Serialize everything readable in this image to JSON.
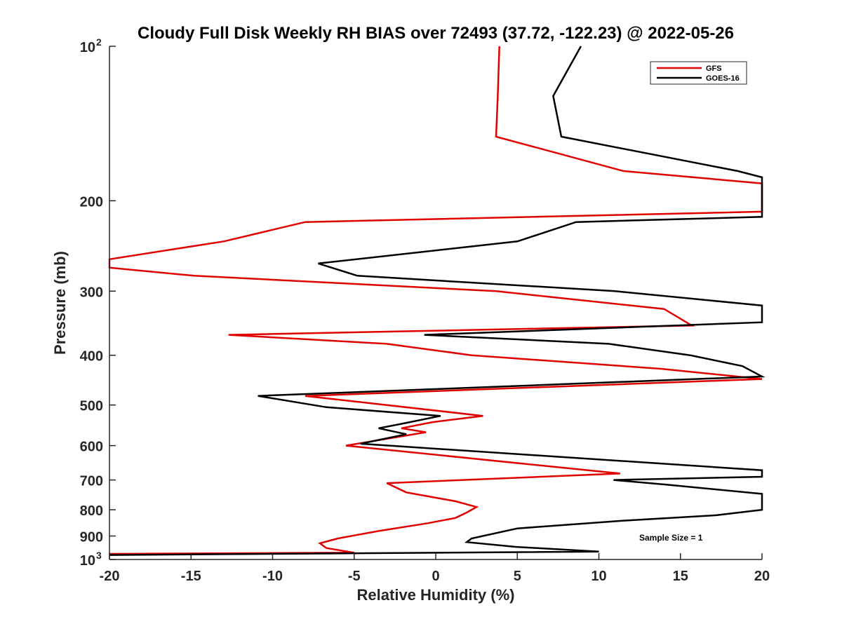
{
  "chart_data": {
    "type": "line",
    "title": "Cloudy Full Disk Weekly RH BIAS over 72493 (37.72, -122.23) @ 2022-05-26",
    "xlabel": "Relative Humidity (%)",
    "ylabel": "Pressure (mb)",
    "xlim": [
      -20,
      20
    ],
    "ylim": [
      100,
      1000
    ],
    "yscale": "log",
    "y_reversed": true,
    "grid": false,
    "legend_position": "top-right",
    "x_ticks": [
      "-20",
      "-15",
      "-10",
      "-5",
      "0",
      "5",
      "10",
      "15",
      "20"
    ],
    "x_tick_values": [
      -20,
      -15,
      -10,
      -5,
      0,
      5,
      10,
      15,
      20
    ],
    "y_ticks": [
      {
        "value": 100,
        "label": "10",
        "sup": "2"
      },
      {
        "value": 200,
        "label": "200"
      },
      {
        "value": 300,
        "label": "300"
      },
      {
        "value": 400,
        "label": "400"
      },
      {
        "value": 500,
        "label": "500"
      },
      {
        "value": 600,
        "label": "600"
      },
      {
        "value": 700,
        "label": "700"
      },
      {
        "value": 800,
        "label": "800"
      },
      {
        "value": 900,
        "label": "900"
      },
      {
        "value": 1000,
        "label": "10",
        "sup": "3"
      }
    ],
    "annotation": "Sample Size = 1",
    "series": [
      {
        "name": "GFS",
        "color": "#e00000",
        "points": [
          [
            3.9,
            100
          ],
          [
            3.8,
            125
          ],
          [
            3.7,
            150
          ],
          [
            11.5,
            175
          ],
          [
            20,
            185
          ],
          [
            20,
            210
          ],
          [
            -8,
            220
          ],
          [
            -13,
            240
          ],
          [
            -20,
            260
          ],
          [
            -20,
            270
          ],
          [
            -14.8,
            280
          ],
          [
            3.7,
            300
          ],
          [
            14,
            325
          ],
          [
            15.7,
            350
          ],
          [
            -12.7,
            365
          ],
          [
            -3,
            380
          ],
          [
            2.2,
            400
          ],
          [
            13.8,
            425
          ],
          [
            20,
            445
          ],
          [
            -8,
            480
          ],
          [
            2.9,
            525
          ],
          [
            -0.2,
            540
          ],
          [
            -2.1,
            555
          ],
          [
            -0.6,
            565
          ],
          [
            -5.5,
            600
          ],
          [
            11.3,
            680
          ],
          [
            -3,
            710
          ],
          [
            -1.8,
            740
          ],
          [
            1.2,
            770
          ],
          [
            2.5,
            790
          ],
          [
            1.9,
            810
          ],
          [
            1.2,
            830
          ],
          [
            -0.5,
            850
          ],
          [
            -3.5,
            880
          ],
          [
            -6,
            910
          ],
          [
            -7.1,
            930
          ],
          [
            -6.7,
            950
          ],
          [
            -5,
            970
          ],
          [
            -20,
            975
          ]
        ]
      },
      {
        "name": "GOES-16",
        "color": "#000000",
        "points": [
          [
            8.9,
            100
          ],
          [
            7.2,
            125
          ],
          [
            7.7,
            150
          ],
          [
            18.5,
            175
          ],
          [
            20,
            180
          ],
          [
            20,
            215
          ],
          [
            8.6,
            220
          ],
          [
            5,
            240
          ],
          [
            -7.2,
            265
          ],
          [
            -4.8,
            280
          ],
          [
            11,
            300
          ],
          [
            20,
            320
          ],
          [
            20,
            345
          ],
          [
            -0.7,
            365
          ],
          [
            10.6,
            380
          ],
          [
            15.6,
            400
          ],
          [
            18.8,
            420
          ],
          [
            20,
            440
          ],
          [
            -10.9,
            480
          ],
          [
            -6.7,
            505
          ],
          [
            0.3,
            525
          ],
          [
            -2.2,
            545
          ],
          [
            -3.5,
            555
          ],
          [
            -1.8,
            570
          ],
          [
            -4.6,
            595
          ],
          [
            20,
            670
          ],
          [
            20,
            690
          ],
          [
            10.9,
            700
          ],
          [
            14.2,
            715
          ],
          [
            20,
            745
          ],
          [
            20,
            800
          ],
          [
            17.2,
            820
          ],
          [
            11.5,
            840
          ],
          [
            5,
            870
          ],
          [
            2.2,
            910
          ],
          [
            1.9,
            925
          ],
          [
            4.9,
            945
          ],
          [
            10,
            965
          ],
          [
            -20,
            980
          ]
        ]
      }
    ]
  }
}
